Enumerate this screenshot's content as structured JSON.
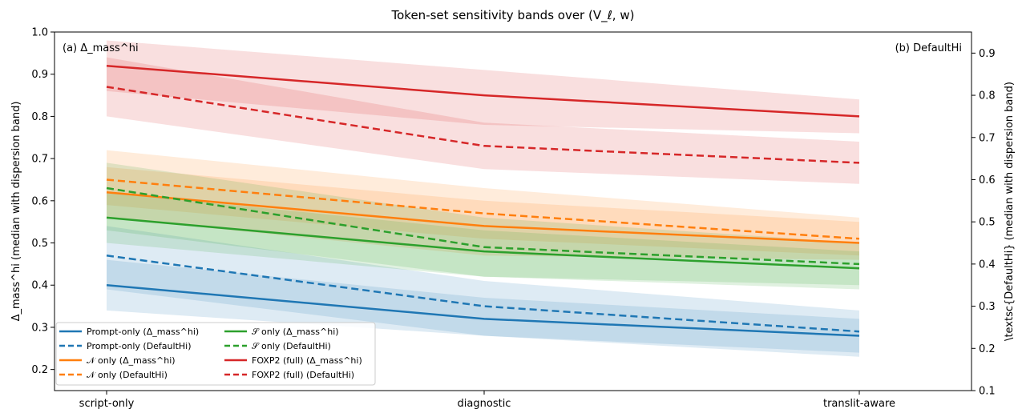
{
  "chart_data": {
    "type": "line",
    "title": "Token-set sensitivity bands over (V_ℓ, w)",
    "categories": [
      "script-only",
      "diagnostic",
      "translit-aware"
    ],
    "panel_labels": {
      "left": "(a) Δ_mass^hi",
      "right": "(b) DefaultHi"
    },
    "left_axis": {
      "label": "Δ_mass^hi (median with dispersion band)",
      "ylim": [
        0.15,
        1.0
      ],
      "ticks": [
        "0.2",
        "0.3",
        "0.4",
        "0.5",
        "0.6",
        "0.7",
        "0.8",
        "0.9",
        "1.0"
      ]
    },
    "right_axis": {
      "label": "\\textsc{DefaultHi} (median with dispersion band)",
      "ylim": [
        0.1,
        0.95
      ],
      "ticks": [
        "0.1",
        "0.2",
        "0.3",
        "0.4",
        "0.5",
        "0.6",
        "0.7",
        "0.8",
        "0.9"
      ]
    },
    "grid": false,
    "legend_position": "lower-left",
    "series": [
      {
        "name": "Prompt-only  (Δ_mass^hi)",
        "axis": "left",
        "style": "solid",
        "color": "#1f77b4",
        "values": [
          0.4,
          0.32,
          0.28
        ],
        "band_low": [
          0.34,
          0.28,
          0.24
        ],
        "band_high": [
          0.46,
          0.37,
          0.32
        ]
      },
      {
        "name": "Prompt-only  (DefaultHi)",
        "axis": "right",
        "style": "dashed",
        "color": "#1f77b4",
        "values": [
          0.42,
          0.3,
          0.24
        ],
        "band_low": [
          0.34,
          0.23,
          0.18
        ],
        "band_high": [
          0.49,
          0.36,
          0.29
        ]
      },
      {
        "name": "𝒩 only  (Δ_mass^hi)",
        "axis": "left",
        "style": "solid",
        "color": "#ff7f0e",
        "values": [
          0.62,
          0.54,
          0.5
        ],
        "band_low": [
          0.56,
          0.47,
          0.46
        ],
        "band_high": [
          0.68,
          0.6,
          0.55
        ]
      },
      {
        "name": "𝒩 only  (DefaultHi)",
        "axis": "right",
        "style": "dashed",
        "color": "#ff7f0e",
        "values": [
          0.6,
          0.52,
          0.46
        ],
        "band_low": [
          0.54,
          0.46,
          0.42
        ],
        "band_high": [
          0.67,
          0.58,
          0.51
        ]
      },
      {
        "name": "𝒮 only  (Δ_mass^hi)",
        "axis": "left",
        "style": "solid",
        "color": "#2ca02c",
        "values": [
          0.56,
          0.48,
          0.44
        ],
        "band_low": [
          0.5,
          0.42,
          0.4
        ],
        "band_high": [
          0.62,
          0.53,
          0.48
        ]
      },
      {
        "name": "𝒮 only  (DefaultHi)",
        "axis": "right",
        "style": "dashed",
        "color": "#2ca02c",
        "values": [
          0.58,
          0.44,
          0.4
        ],
        "band_low": [
          0.48,
          0.37,
          0.34
        ],
        "band_high": [
          0.64,
          0.51,
          0.45
        ]
      },
      {
        "name": "FOXP2 (full)  (Δ_mass^hi)",
        "axis": "left",
        "style": "solid",
        "color": "#d62728",
        "values": [
          0.92,
          0.85,
          0.8
        ],
        "band_low": [
          0.86,
          0.78,
          0.76
        ],
        "band_high": [
          0.98,
          0.91,
          0.84
        ]
      },
      {
        "name": "FOXP2 (full)  (DefaultHi)",
        "axis": "right",
        "style": "dashed",
        "color": "#d62728",
        "values": [
          0.82,
          0.68,
          0.64
        ],
        "band_low": [
          0.75,
          0.625,
          0.59
        ],
        "band_high": [
          0.89,
          0.735,
          0.69
        ]
      }
    ]
  }
}
